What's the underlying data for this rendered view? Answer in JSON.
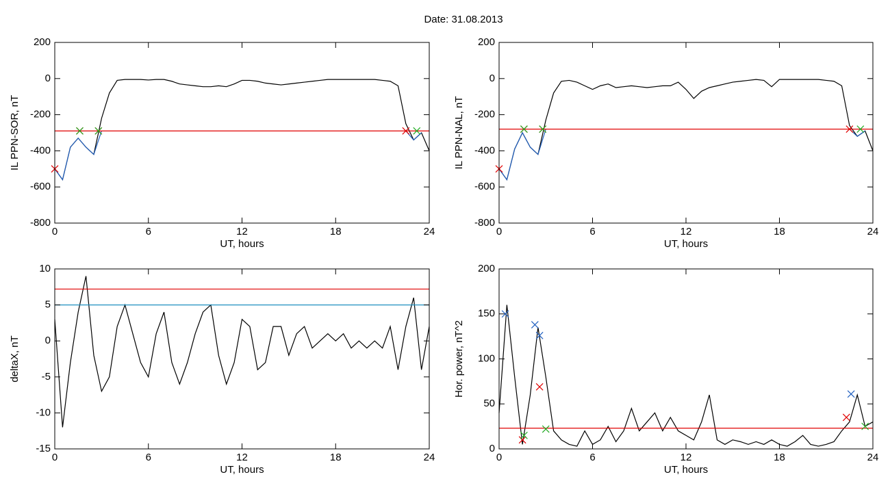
{
  "title": "Date:  31.08.2013",
  "chart_data": [
    {
      "type": "line",
      "xlabel": "UT, hours",
      "ylabel": "IL PPN-SOR, nT",
      "xlim": [
        0,
        24
      ],
      "xticks": [
        0,
        6,
        12,
        18,
        24
      ],
      "ylim": [
        -800,
        200
      ],
      "yticks": [
        -800,
        -600,
        -400,
        -200,
        0,
        200
      ],
      "x": [
        0,
        0.5,
        1,
        1.5,
        2,
        2.5,
        3,
        3.5,
        4,
        4.5,
        5,
        5.5,
        6,
        6.5,
        7,
        7.5,
        8,
        8.5,
        9,
        9.5,
        10,
        10.5,
        11,
        11.5,
        12,
        12.5,
        13,
        13.5,
        14,
        14.5,
        15,
        15.5,
        16,
        16.5,
        17,
        17.5,
        18,
        18.5,
        19,
        19.5,
        20,
        20.5,
        21,
        21.5,
        22,
        22.5,
        23,
        23.5,
        24
      ],
      "series": [
        {
          "color": "#000000",
          "values": [
            -500,
            -560,
            -380,
            -330,
            -380,
            -420,
            -220,
            -80,
            -10,
            -5,
            -5,
            -5,
            -8,
            -5,
            -5,
            -15,
            -30,
            -35,
            -40,
            -45,
            -45,
            -40,
            -45,
            -30,
            -10,
            -10,
            -15,
            -25,
            -30,
            -35,
            -30,
            -25,
            -20,
            -15,
            -10,
            -5,
            -5,
            -5,
            -5,
            -5,
            -5,
            -5,
            -10,
            -15,
            -40,
            -250,
            -340,
            -300,
            -400
          ]
        },
        {
          "color": "#1f5fbf",
          "x": [
            0,
            0.5,
            1,
            1.5,
            2,
            2.5,
            3
          ],
          "values": [
            -500,
            -560,
            -380,
            -330,
            -380,
            -420,
            -290
          ]
        },
        {
          "color": "#1f5fbf",
          "x": [
            22.5,
            23,
            23.5
          ],
          "values": [
            -290,
            -340,
            -300
          ]
        },
        {
          "color": "#e00000",
          "x": [
            0,
            24
          ],
          "values": [
            -290,
            -290
          ]
        },
        {
          "color": "#e00000",
          "marker": "x",
          "x": [
            0,
            1.6,
            2.8,
            22.5
          ],
          "values": [
            -500,
            -290,
            -290,
            -290
          ]
        },
        {
          "color": "#22aa22",
          "marker": "x",
          "x": [
            1.6,
            2.8,
            23.2
          ],
          "values": [
            -290,
            -290,
            -290
          ]
        }
      ]
    },
    {
      "type": "line",
      "xlabel": "UT, hours",
      "ylabel": "IL PPN-NAL, nT",
      "xlim": [
        0,
        24
      ],
      "xticks": [
        0,
        6,
        12,
        18,
        24
      ],
      "ylim": [
        -800,
        200
      ],
      "yticks": [
        -800,
        -600,
        -400,
        -200,
        0,
        200
      ],
      "x": [
        0,
        0.5,
        1,
        1.5,
        2,
        2.5,
        3,
        3.5,
        4,
        4.5,
        5,
        5.5,
        6,
        6.5,
        7,
        7.5,
        8,
        8.5,
        9,
        9.5,
        10,
        10.5,
        11,
        11.5,
        12,
        12.5,
        13,
        13.5,
        14,
        14.5,
        15,
        15.5,
        16,
        16.5,
        17,
        17.5,
        18,
        18.5,
        19,
        19.5,
        20,
        20.5,
        21,
        21.5,
        22,
        22.5,
        23,
        23.5,
        24
      ],
      "series": [
        {
          "color": "#000000",
          "values": [
            -500,
            -560,
            -390,
            -300,
            -380,
            -420,
            -230,
            -80,
            -15,
            -10,
            -20,
            -40,
            -60,
            -40,
            -30,
            -50,
            -45,
            -40,
            -45,
            -50,
            -45,
            -40,
            -40,
            -20,
            -60,
            -110,
            -70,
            -50,
            -40,
            -30,
            -20,
            -15,
            -10,
            -5,
            -10,
            -45,
            -5,
            -5,
            -5,
            -5,
            -5,
            -5,
            -10,
            -15,
            -40,
            -260,
            -320,
            -290,
            -400
          ]
        },
        {
          "color": "#1f5fbf",
          "x": [
            0,
            0.5,
            1,
            1.5,
            2,
            2.5,
            3
          ],
          "values": [
            -500,
            -560,
            -390,
            -300,
            -380,
            -420,
            -280
          ]
        },
        {
          "color": "#1f5fbf",
          "x": [
            22.5,
            23,
            23.5
          ],
          "values": [
            -280,
            -320,
            -290
          ]
        },
        {
          "color": "#e00000",
          "x": [
            0,
            24
          ],
          "values": [
            -280,
            -280
          ]
        },
        {
          "color": "#e00000",
          "marker": "x",
          "x": [
            0,
            1.6,
            2.8,
            22.5
          ],
          "values": [
            -500,
            -280,
            -280,
            -280
          ]
        },
        {
          "color": "#22aa22",
          "marker": "x",
          "x": [
            1.6,
            2.8,
            23.2
          ],
          "values": [
            -280,
            -280,
            -280
          ]
        }
      ]
    },
    {
      "type": "line",
      "xlabel": "UT, hours",
      "ylabel": "deltaX, nT",
      "xlim": [
        0,
        24
      ],
      "xticks": [
        0,
        6,
        12,
        18,
        24
      ],
      "ylim": [
        -15,
        10
      ],
      "yticks": [
        -15,
        -10,
        -5,
        0,
        5,
        10
      ],
      "x": [
        0,
        0.5,
        1,
        1.5,
        2,
        2.5,
        3,
        3.5,
        4,
        4.5,
        5,
        5.5,
        6,
        6.5,
        7,
        7.5,
        8,
        8.5,
        9,
        9.5,
        10,
        10.5,
        11,
        11.5,
        12,
        12.5,
        13,
        13.5,
        14,
        14.5,
        15,
        15.5,
        16,
        16.5,
        17,
        17.5,
        18,
        18.5,
        19,
        19.5,
        20,
        20.5,
        21,
        21.5,
        22,
        22.5,
        23,
        23.5,
        24
      ],
      "series": [
        {
          "color": "#000000",
          "values": [
            3,
            -12,
            -3,
            4,
            9,
            -2,
            -7,
            -5,
            2,
            5,
            1,
            -3,
            -5,
            1,
            4,
            -3,
            -6,
            -3,
            1,
            4,
            5,
            -2,
            -6,
            -3,
            3,
            2,
            -4,
            -3,
            2,
            2,
            -2,
            1,
            2,
            -1,
            0,
            1,
            0,
            1,
            -1,
            0,
            -1,
            0,
            -1,
            2,
            -4,
            2,
            6,
            -4,
            2
          ]
        },
        {
          "color": "#e00000",
          "x": [
            0,
            24
          ],
          "values": [
            7.2,
            7.2
          ]
        },
        {
          "color": "#1f8fbf",
          "x": [
            0,
            24
          ],
          "values": [
            5,
            5
          ]
        }
      ]
    },
    {
      "type": "line",
      "xlabel": "UT, hours",
      "ylabel": "Hor. power, nT^2",
      "xlim": [
        0,
        24
      ],
      "xticks": [
        0,
        6,
        12,
        18,
        24
      ],
      "ylim": [
        0,
        200
      ],
      "yticks": [
        0,
        50,
        100,
        150,
        200
      ],
      "x": [
        0,
        0.5,
        1,
        1.5,
        2,
        2.5,
        3,
        3.5,
        4,
        4.5,
        5,
        5.5,
        6,
        6.5,
        7,
        7.5,
        8,
        8.5,
        9,
        9.5,
        10,
        10.5,
        11,
        11.5,
        12,
        12.5,
        13,
        13.5,
        14,
        14.5,
        15,
        15.5,
        16,
        16.5,
        17,
        17.5,
        18,
        18.5,
        19,
        19.5,
        20,
        20.5,
        21,
        21.5,
        22,
        22.5,
        23,
        23.5,
        24
      ],
      "series": [
        {
          "color": "#000000",
          "values": [
            40,
            160,
            80,
            5,
            60,
            135,
            80,
            20,
            10,
            5,
            3,
            20,
            5,
            10,
            25,
            8,
            20,
            45,
            20,
            30,
            40,
            20,
            35,
            20,
            15,
            10,
            30,
            60,
            10,
            5,
            10,
            8,
            5,
            8,
            5,
            10,
            5,
            3,
            8,
            15,
            5,
            3,
            5,
            8,
            20,
            30,
            60,
            25,
            30
          ]
        },
        {
          "color": "#e00000",
          "x": [
            0,
            24
          ],
          "values": [
            23,
            23
          ]
        },
        {
          "color": "#1f5fbf",
          "marker": "x",
          "x": [
            0.4,
            2.3,
            2.6,
            22.6
          ],
          "values": [
            150,
            138,
            126,
            61
          ]
        },
        {
          "color": "#e00000",
          "marker": "x",
          "x": [
            1.5,
            2.6,
            22.3
          ],
          "values": [
            10,
            69,
            35
          ]
        },
        {
          "color": "#22aa22",
          "marker": "x",
          "x": [
            1.6,
            3.0,
            23.5
          ],
          "values": [
            15,
            22,
            25
          ]
        }
      ]
    }
  ]
}
